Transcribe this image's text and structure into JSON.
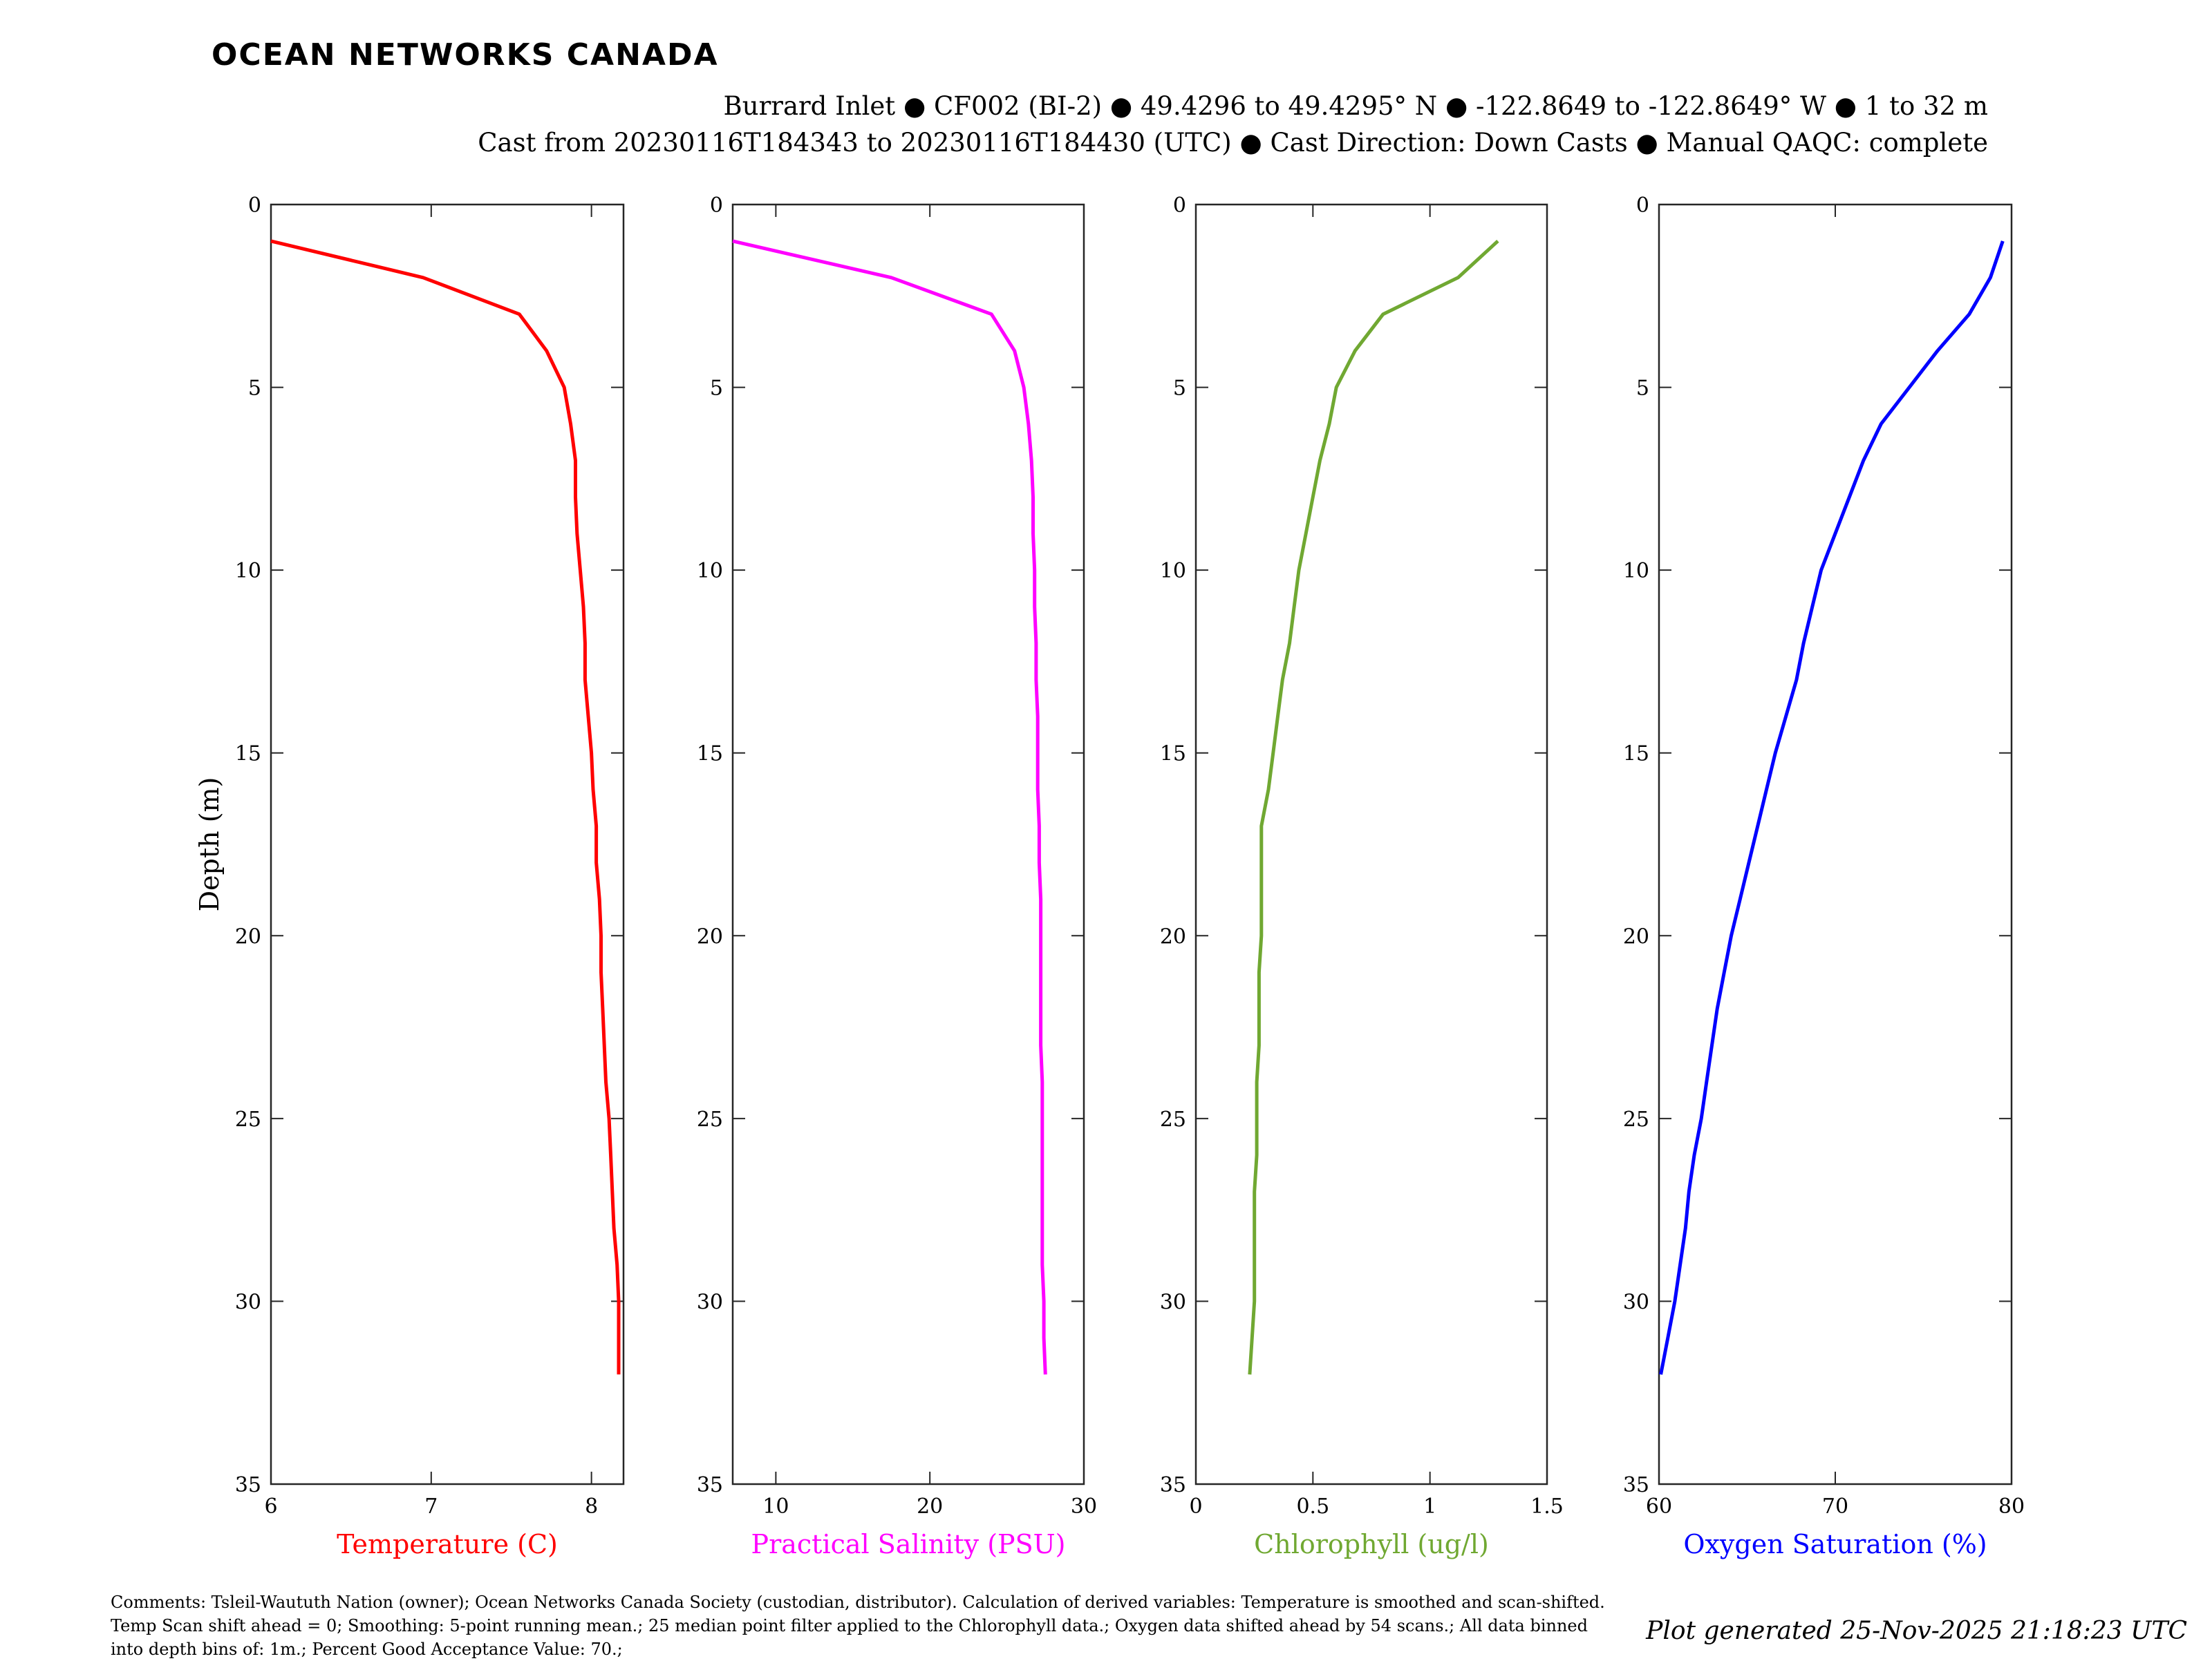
{
  "brand": {
    "logo_text": "OCEAN NETWORKS CANADA",
    "color": "#1f9bc4"
  },
  "header": {
    "line1": "Burrard Inlet ● CF002 (BI-2) ● 49.4296 to 49.4295° N ● -122.8649 to -122.8649° W ● 1 to 32 m",
    "line2": "Cast from 20230116T184343 to 20230116T184430 (UTC) ● Cast Direction: Down Casts ● Manual QAQC: complete"
  },
  "footer": {
    "comments": "Comments: Tsleil-Waututh Nation (owner); Ocean Networks Canada Society (custodian, distributor). Calculation of derived variables: Temperature is smoothed and scan-shifted. Temp Scan shift ahead = 0; Smoothing: 5-point running mean.; 25 median point filter applied to the Chlorophyll data.; Oxygen data shifted ahead by 54 scans.; All data binned into depth bins of: 1m.; Percent Good Acceptance Value: 70.;",
    "generated": "Plot generated 25-Nov-2025 21:18:23 UTC"
  },
  "chart_data": [
    {
      "type": "line",
      "xlabel": "Temperature (C)",
      "ylabel": "Depth (m)",
      "color": "#ff0000",
      "xlim": [
        6,
        8.2
      ],
      "ylim": [
        0,
        35
      ],
      "y_reversed": true,
      "x_ticks": [
        6,
        7,
        8
      ],
      "y_ticks": [
        0,
        5,
        10,
        15,
        20,
        25,
        30,
        35
      ],
      "grid": false,
      "depth": [
        1,
        2,
        3,
        4,
        5,
        6,
        7,
        8,
        9,
        10,
        11,
        12,
        13,
        14,
        15,
        16,
        17,
        18,
        19,
        20,
        21,
        22,
        23,
        24,
        25,
        26,
        27,
        28,
        29,
        30,
        31,
        32
      ],
      "values": [
        6.0,
        6.95,
        7.55,
        7.72,
        7.83,
        7.87,
        7.9,
        7.9,
        7.91,
        7.93,
        7.95,
        7.96,
        7.96,
        7.98,
        8.0,
        8.01,
        8.03,
        8.03,
        8.05,
        8.06,
        8.06,
        8.07,
        8.08,
        8.09,
        8.11,
        8.12,
        8.13,
        8.14,
        8.16,
        8.17,
        8.17,
        8.17
      ]
    },
    {
      "type": "line",
      "xlabel": "Practical Salinity (PSU)",
      "ylabel": "",
      "color": "#ff00ff",
      "xlim": [
        7.2,
        30
      ],
      "ylim": [
        0,
        35
      ],
      "y_reversed": true,
      "x_ticks": [
        10,
        20,
        30
      ],
      "y_ticks": [
        0,
        5,
        10,
        15,
        20,
        25,
        30,
        35
      ],
      "grid": false,
      "depth": [
        1,
        2,
        3,
        4,
        5,
        6,
        7,
        8,
        9,
        10,
        11,
        12,
        13,
        14,
        15,
        16,
        17,
        18,
        19,
        20,
        21,
        22,
        23,
        24,
        25,
        26,
        27,
        28,
        29,
        30,
        31,
        32
      ],
      "values": [
        7.2,
        17.5,
        24.0,
        25.5,
        26.1,
        26.4,
        26.6,
        26.7,
        26.7,
        26.8,
        26.8,
        26.9,
        26.9,
        27.0,
        27.0,
        27.0,
        27.1,
        27.1,
        27.2,
        27.2,
        27.2,
        27.2,
        27.2,
        27.3,
        27.3,
        27.3,
        27.3,
        27.3,
        27.3,
        27.4,
        27.4,
        27.5
      ]
    },
    {
      "type": "line",
      "xlabel": "Chlorophyll (ug/l)",
      "ylabel": "",
      "color": "#70a832",
      "xlim": [
        0,
        1.5
      ],
      "ylim": [
        0,
        35
      ],
      "y_reversed": true,
      "x_ticks": [
        0,
        0.5,
        1,
        1.5
      ],
      "y_ticks": [
        0,
        5,
        10,
        15,
        20,
        25,
        30,
        35
      ],
      "grid": false,
      "depth": [
        1,
        2,
        3,
        4,
        5,
        6,
        7,
        8,
        9,
        10,
        11,
        12,
        13,
        14,
        15,
        16,
        17,
        18,
        19,
        20,
        21,
        22,
        23,
        24,
        25,
        26,
        27,
        28,
        29,
        30,
        31,
        32
      ],
      "values": [
        1.29,
        1.12,
        0.8,
        0.68,
        0.6,
        0.57,
        0.53,
        0.5,
        0.47,
        0.44,
        0.42,
        0.4,
        0.37,
        0.35,
        0.33,
        0.31,
        0.28,
        0.28,
        0.28,
        0.28,
        0.27,
        0.27,
        0.27,
        0.26,
        0.26,
        0.26,
        0.25,
        0.25,
        0.25,
        0.25,
        0.24,
        0.23
      ]
    },
    {
      "type": "line",
      "xlabel": "Oxygen Saturation (%)",
      "ylabel": "",
      "color": "#0000ff",
      "xlim": [
        60,
        80
      ],
      "ylim": [
        0,
        35
      ],
      "y_reversed": true,
      "x_ticks": [
        60,
        70,
        80
      ],
      "y_ticks": [
        0,
        5,
        10,
        15,
        20,
        25,
        30,
        35
      ],
      "grid": false,
      "depth": [
        1,
        2,
        3,
        4,
        5,
        6,
        7,
        8,
        9,
        10,
        11,
        12,
        13,
        14,
        15,
        16,
        17,
        18,
        19,
        20,
        21,
        22,
        23,
        24,
        25,
        26,
        27,
        28,
        29,
        30,
        31,
        32
      ],
      "values": [
        79.5,
        78.8,
        77.6,
        75.8,
        74.2,
        72.6,
        71.6,
        70.8,
        70.0,
        69.2,
        68.7,
        68.2,
        67.8,
        67.2,
        66.6,
        66.1,
        65.6,
        65.1,
        64.6,
        64.1,
        63.7,
        63.3,
        63.0,
        62.7,
        62.4,
        62.0,
        61.7,
        61.5,
        61.2,
        60.9,
        60.5,
        60.1
      ]
    }
  ]
}
